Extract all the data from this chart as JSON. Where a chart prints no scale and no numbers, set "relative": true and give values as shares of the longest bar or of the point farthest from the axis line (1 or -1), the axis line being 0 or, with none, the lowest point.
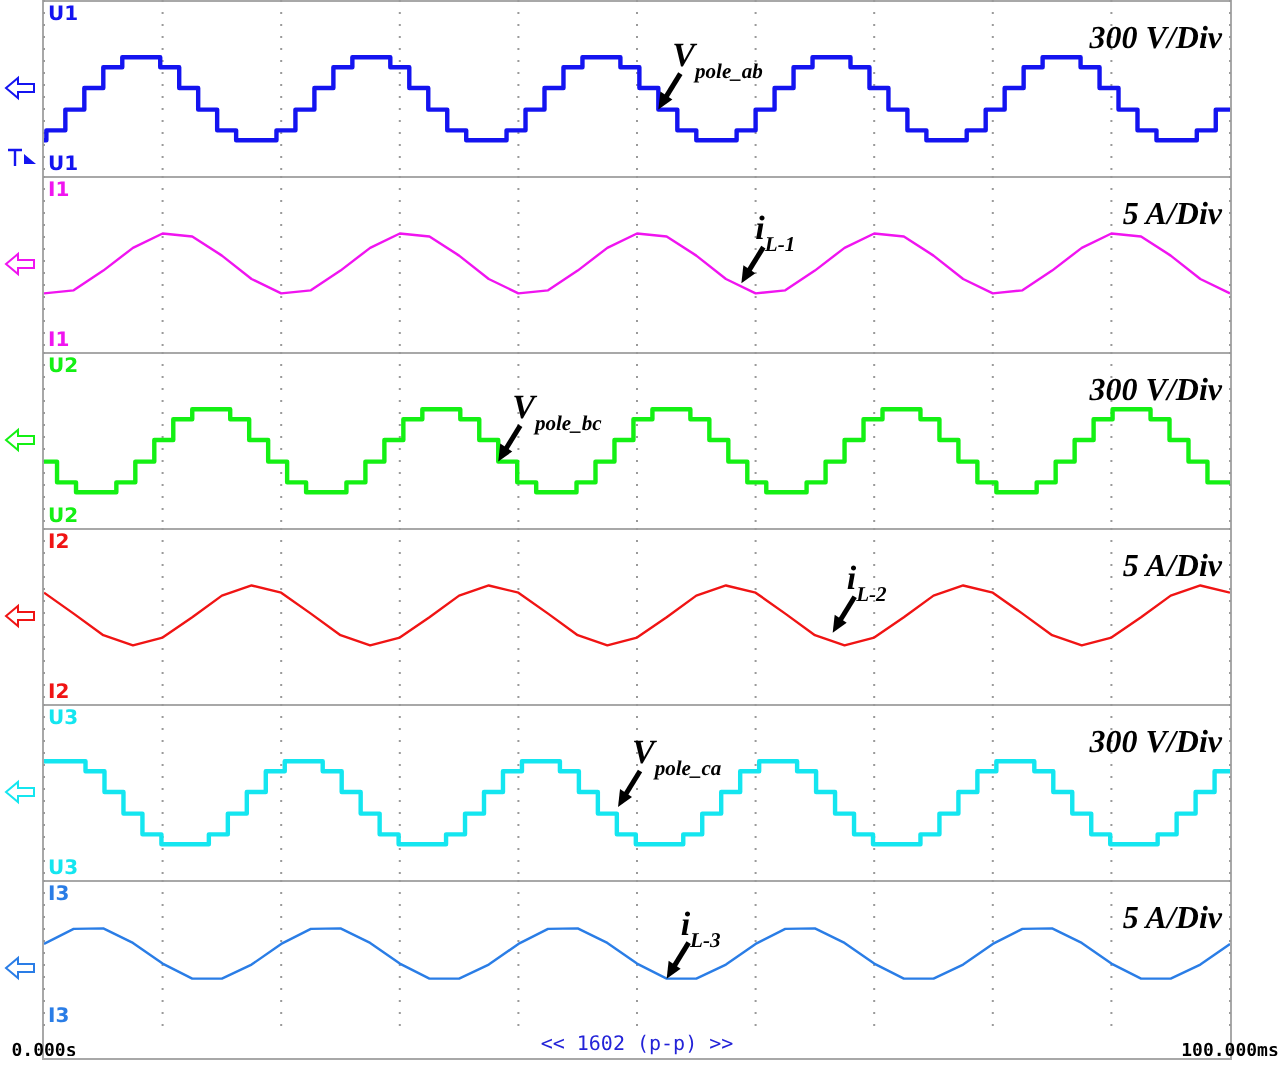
{
  "chart_data": [
    {
      "type": "step",
      "relative": true,
      "grid": "x",
      "tick_labels": false,
      "xlim": [
        0,
        100
      ],
      "xticks": [
        {
          "value": 0,
          "label": null
        },
        {
          "value": 10,
          "label": null
        },
        {
          "value": 20,
          "label": null
        },
        {
          "value": 30,
          "label": null
        },
        {
          "value": 40,
          "label": null
        },
        {
          "value": 50,
          "label": null
        },
        {
          "value": 60,
          "label": null
        },
        {
          "value": 70,
          "label": null
        },
        {
          "value": 80,
          "label": null
        },
        {
          "value": 90,
          "label": null
        },
        {
          "value": 100,
          "label": null
        }
      ],
      "x": [
        0,
        0.2,
        1.8,
        3.4,
        5.0,
        6.6,
        9.8,
        11.4,
        13.0,
        14.6,
        16.2,
        19.6,
        21.2,
        22.8,
        24.4,
        26.0,
        29.2,
        30.8,
        32.4,
        34.0,
        35.6,
        39.0,
        40.6,
        42.2,
        43.8,
        45.4,
        48.6,
        50.2,
        51.8,
        53.4,
        55.0,
        58.4,
        60.0,
        61.6,
        63.2,
        64.8,
        68.0,
        69.6,
        71.2,
        72.8,
        74.4,
        77.8,
        79.4,
        81.0,
        82.6,
        84.2,
        87.4,
        89.0,
        90.6,
        92.2,
        93.8,
        97.2,
        98.8,
        100
      ],
      "series": [
        {
          "name": "U1",
          "color": "#1414f0",
          "values": [
            0,
            0.12,
            0.37,
            0.63,
            0.88,
            1,
            0.88,
            0.63,
            0.37,
            0.12,
            0,
            0.12,
            0.37,
            0.63,
            0.88,
            1,
            0.88,
            0.63,
            0.37,
            0.12,
            0,
            0.12,
            0.37,
            0.63,
            0.88,
            1,
            0.88,
            0.63,
            0.37,
            0.12,
            0,
            0.12,
            0.37,
            0.63,
            0.88,
            1,
            0.88,
            0.63,
            0.37,
            0.12,
            0,
            0.12,
            0.37,
            0.63,
            0.88,
            1,
            0.88,
            0.63,
            0.37,
            0.12,
            0,
            0.12,
            0.37,
            0.37
          ]
        }
      ],
      "annotations": [
        "300 V/Div",
        {
          "text": "V$_{pole_ab}$",
          "x": 51.8,
          "y": 0.37
        }
      ]
    },
    {
      "type": "line",
      "relative": true,
      "grid": "x",
      "tick_labels": false,
      "xlim": [
        0,
        100
      ],
      "xticks": [
        {
          "value": 0,
          "label": null
        },
        {
          "value": 10,
          "label": null
        },
        {
          "value": 20,
          "label": null
        },
        {
          "value": 30,
          "label": null
        },
        {
          "value": 40,
          "label": null
        },
        {
          "value": 50,
          "label": null
        },
        {
          "value": 60,
          "label": null
        },
        {
          "value": 70,
          "label": null
        },
        {
          "value": 80,
          "label": null
        },
        {
          "value": 90,
          "label": null
        },
        {
          "value": 100,
          "label": null
        }
      ],
      "x": [
        0,
        2.5,
        5,
        7.5,
        10,
        12.5,
        15,
        17.5,
        20,
        22.5,
        25,
        27.5,
        30,
        32.5,
        35,
        37.5,
        40,
        42.5,
        45,
        47.5,
        50,
        52.5,
        55,
        57.5,
        60,
        62.5,
        65,
        67.5,
        70,
        72.5,
        75,
        77.5,
        80,
        82.5,
        85,
        87.5,
        90,
        92.5,
        95,
        97.5,
        100
      ],
      "series": [
        {
          "name": "I1",
          "color": "#f014f0",
          "values": [
            0,
            0.05,
            0.38,
            0.76,
            1,
            0.95,
            0.63,
            0.24,
            0,
            0.05,
            0.38,
            0.76,
            1,
            0.95,
            0.63,
            0.24,
            0,
            0.05,
            0.38,
            0.76,
            1,
            0.95,
            0.63,
            0.24,
            0,
            0.05,
            0.38,
            0.76,
            1,
            0.95,
            0.63,
            0.24,
            0,
            0.05,
            0.38,
            0.76,
            1,
            0.95,
            0.63,
            0.24,
            0
          ]
        }
      ],
      "annotations": [
        "5 A/Div",
        {
          "text": "i$_{L-1}$",
          "x": 58.8,
          "y": 0.17
        }
      ]
    },
    {
      "type": "step",
      "relative": true,
      "grid": "x",
      "tick_labels": false,
      "xlim": [
        0,
        100
      ],
      "xticks": [
        {
          "value": 0,
          "label": null
        },
        {
          "value": 10,
          "label": null
        },
        {
          "value": 20,
          "label": null
        },
        {
          "value": 30,
          "label": null
        },
        {
          "value": 40,
          "label": null
        },
        {
          "value": 50,
          "label": null
        },
        {
          "value": 60,
          "label": null
        },
        {
          "value": 70,
          "label": null
        },
        {
          "value": 80,
          "label": null
        },
        {
          "value": 90,
          "label": null
        },
        {
          "value": 100,
          "label": null
        }
      ],
      "x": [
        0,
        1.1,
        2.7,
        6.1,
        7.7,
        9.3,
        10.9,
        12.5,
        15.7,
        17.3,
        18.9,
        20.5,
        22.1,
        25.5,
        27.1,
        28.7,
        30.3,
        31.9,
        35.1,
        36.7,
        38.3,
        39.9,
        41.5,
        44.9,
        46.5,
        48.1,
        49.7,
        51.3,
        54.5,
        56.1,
        57.7,
        59.3,
        60.9,
        64.3,
        65.9,
        67.5,
        69.1,
        70.7,
        73.9,
        75.5,
        77.1,
        78.7,
        80.3,
        83.7,
        85.3,
        86.9,
        88.5,
        90.1,
        93.3,
        94.9,
        96.5,
        98.1,
        100
      ],
      "series": [
        {
          "name": "U2",
          "color": "#14f014",
          "values": [
            0.37,
            0.12,
            0,
            0.12,
            0.37,
            0.63,
            0.88,
            1,
            0.88,
            0.63,
            0.37,
            0.12,
            0,
            0.12,
            0.37,
            0.63,
            0.88,
            1,
            0.88,
            0.63,
            0.37,
            0.12,
            0,
            0.12,
            0.37,
            0.63,
            0.88,
            1,
            0.88,
            0.63,
            0.37,
            0.12,
            0,
            0.12,
            0.37,
            0.63,
            0.88,
            1,
            0.88,
            0.63,
            0.37,
            0.12,
            0,
            0.12,
            0.37,
            0.63,
            0.88,
            1,
            0.88,
            0.63,
            0.37,
            0.12,
            0.12
          ]
        }
      ],
      "annotations": [
        "300 V/Div",
        {
          "text": "V$_{pole_bc}$",
          "x": 38.3,
          "y": 0.37
        }
      ]
    },
    {
      "type": "line",
      "relative": true,
      "grid": "x",
      "tick_labels": false,
      "xlim": [
        0,
        100
      ],
      "xticks": [
        {
          "value": 0,
          "label": null
        },
        {
          "value": 10,
          "label": null
        },
        {
          "value": 20,
          "label": null
        },
        {
          "value": 30,
          "label": null
        },
        {
          "value": 40,
          "label": null
        },
        {
          "value": 50,
          "label": null
        },
        {
          "value": 60,
          "label": null
        },
        {
          "value": 70,
          "label": null
        },
        {
          "value": 80,
          "label": null
        },
        {
          "value": 90,
          "label": null
        },
        {
          "value": 100,
          "label": null
        }
      ],
      "x": [
        0,
        2.5,
        5,
        7.5,
        10,
        12.5,
        15,
        17.5,
        20,
        22.5,
        25,
        27.5,
        30,
        32.5,
        35,
        37.5,
        40,
        42.5,
        45,
        47.5,
        50,
        52.5,
        55,
        57.5,
        60,
        62.5,
        65,
        67.5,
        70,
        72.5,
        75,
        77.5,
        80,
        82.5,
        85,
        87.5,
        90,
        92.5,
        95,
        97.5,
        100
      ],
      "series": [
        {
          "name": "I2",
          "color": "#f01414",
          "values": [
            0.88,
            0.53,
            0.17,
            0,
            0.13,
            0.47,
            0.83,
            1,
            0.88,
            0.53,
            0.17,
            0,
            0.13,
            0.47,
            0.83,
            1,
            0.88,
            0.53,
            0.17,
            0,
            0.13,
            0.47,
            0.83,
            1,
            0.88,
            0.53,
            0.17,
            0,
            0.13,
            0.47,
            0.83,
            1,
            0.88,
            0.53,
            0.17,
            0,
            0.13,
            0.47,
            0.83,
            1,
            0.88
          ]
        }
      ],
      "annotations": [
        "5 A/Div",
        {
          "text": "i$_{L-2}$",
          "x": 66.5,
          "y": 0.21
        }
      ]
    },
    {
      "type": "step",
      "relative": true,
      "grid": "x",
      "tick_labels": false,
      "xlim": [
        0,
        100
      ],
      "xticks": [
        {
          "value": 0,
          "label": null
        },
        {
          "value": 10,
          "label": null
        },
        {
          "value": 20,
          "label": null
        },
        {
          "value": 30,
          "label": null
        },
        {
          "value": 40,
          "label": null
        },
        {
          "value": 50,
          "label": null
        },
        {
          "value": 60,
          "label": null
        },
        {
          "value": 70,
          "label": null
        },
        {
          "value": 80,
          "label": null
        },
        {
          "value": 90,
          "label": null
        },
        {
          "value": 100,
          "label": null
        }
      ],
      "x": [
        0,
        3.5,
        5.1,
        6.7,
        8.3,
        9.9,
        13.9,
        15.5,
        17.1,
        18.7,
        20.3,
        23.5,
        25.1,
        26.7,
        28.3,
        29.9,
        33.9,
        35.5,
        37.1,
        38.7,
        40.3,
        43.5,
        45.1,
        46.7,
        48.3,
        49.9,
        53.9,
        55.5,
        57.1,
        58.7,
        60.3,
        63.5,
        65.1,
        66.7,
        68.3,
        69.9,
        73.9,
        75.5,
        77.1,
        78.7,
        80.3,
        83.5,
        85.1,
        86.7,
        88.3,
        89.9,
        93.9,
        95.5,
        97.1,
        98.7,
        100
      ],
      "series": [
        {
          "name": "U3",
          "color": "#14e6f0",
          "values": [
            1,
            0.88,
            0.63,
            0.37,
            0.12,
            0,
            0.12,
            0.37,
            0.63,
            0.88,
            1,
            0.88,
            0.63,
            0.37,
            0.12,
            0,
            0.12,
            0.37,
            0.63,
            0.88,
            1,
            0.88,
            0.63,
            0.37,
            0.12,
            0,
            0.12,
            0.37,
            0.63,
            0.88,
            1,
            0.88,
            0.63,
            0.37,
            0.12,
            0,
            0.12,
            0.37,
            0.63,
            0.88,
            1,
            0.88,
            0.63,
            0.37,
            0.12,
            0,
            0.12,
            0.37,
            0.63,
            0.88,
            0.88
          ]
        }
      ],
      "annotations": [
        "300 V/Div",
        {
          "text": "V$_{pole_ca}$",
          "x": 48.4,
          "y": 0.45
        }
      ]
    },
    {
      "type": "line",
      "relative": true,
      "grid": "x",
      "tick_labels": "x",
      "xlim": [
        0,
        100
      ],
      "xticks": [
        {
          "value": 0,
          "label": "0.000s"
        },
        {
          "value": 10,
          "label": null
        },
        {
          "value": 20,
          "label": null
        },
        {
          "value": 30,
          "label": null
        },
        {
          "value": 40,
          "label": null
        },
        {
          "value": 50,
          "label": null
        },
        {
          "value": 60,
          "label": null
        },
        {
          "value": 70,
          "label": null
        },
        {
          "value": 80,
          "label": null
        },
        {
          "value": 90,
          "label": null
        },
        {
          "value": 100,
          "label": "100.000ms"
        }
      ],
      "x": [
        0,
        2.5,
        5,
        7.5,
        10,
        12.5,
        15,
        17.5,
        20,
        22.5,
        25,
        27.5,
        30,
        32.5,
        35,
        37.5,
        40,
        42.5,
        45,
        47.5,
        50,
        52.5,
        55,
        57.5,
        60,
        62.5,
        65,
        67.5,
        70,
        72.5,
        75,
        77.5,
        80,
        82.5,
        85,
        87.5,
        90,
        92.5,
        95,
        97.5,
        100
      ],
      "series": [
        {
          "name": "I3",
          "color": "#2a7de6",
          "values": [
            0.69,
            0.99,
            1,
            0.71,
            0.3,
            0,
            0,
            0.28,
            0.69,
            0.99,
            1,
            0.71,
            0.3,
            0,
            0,
            0.28,
            0.69,
            0.99,
            1,
            0.71,
            0.3,
            0,
            0,
            0.28,
            0.69,
            0.99,
            1,
            0.71,
            0.3,
            0,
            0,
            0.28,
            0.69,
            0.99,
            1,
            0.71,
            0.3,
            0,
            0,
            0.28,
            0.69
          ]
        }
      ],
      "annotations": [
        "5 A/Div",
        {
          "text": "i$_{L-3}$",
          "x": 52.5,
          "y": 0
        },
        "<< 1602 (p-p) >>"
      ]
    }
  ]
}
